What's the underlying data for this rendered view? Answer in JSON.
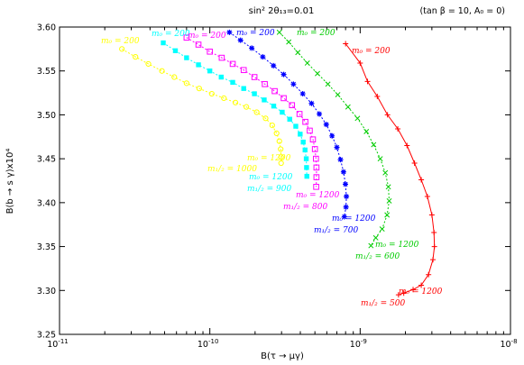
{
  "chart_data": {
    "type": "scatter",
    "title": "sin² 2θ₁₃=0.01",
    "annotation": "(tan β = 10,  A₀ = 0)",
    "xlabel": "B(τ → μγ)",
    "ylabel": "B(b → s γ)x10⁴",
    "xscale": "log",
    "xlim": [
      1e-11,
      1e-08
    ],
    "ylim": [
      3.25,
      3.6
    ],
    "x_ticks": [
      {
        "v": 1e-11,
        "base": "10",
        "exp": "-11"
      },
      {
        "v": 1e-10,
        "base": "10",
        "exp": "-10"
      },
      {
        "v": 1e-09,
        "base": "10",
        "exp": "-9"
      },
      {
        "v": 1e-08,
        "base": "10",
        "exp": "-8"
      }
    ],
    "y_ticks": [
      "3.25",
      "3.30",
      "3.35",
      "3.40",
      "3.45",
      "3.50",
      "3.55",
      "3.60"
    ],
    "grid": false,
    "legend": "none",
    "series": [
      {
        "name": "m1/2 = 1000",
        "color": "#ffff00",
        "marker": "circle",
        "labels": {
          "start": "m₀ = 200",
          "end_m0": "m₀ = 1200",
          "end_m12": "m₁/₂ = 1000"
        },
        "points": [
          [
            2.6e-11,
            3.575
          ],
          [
            3.2e-11,
            3.566
          ],
          [
            3.9e-11,
            3.558
          ],
          [
            4.8e-11,
            3.55
          ],
          [
            5.8e-11,
            3.543
          ],
          [
            7e-11,
            3.536
          ],
          [
            8.5e-11,
            3.53
          ],
          [
            1.03e-10,
            3.524
          ],
          [
            1.24e-10,
            3.519
          ],
          [
            1.48e-10,
            3.514
          ],
          [
            1.75e-10,
            3.509
          ],
          [
            2.05e-10,
            3.503
          ],
          [
            2.35e-10,
            3.496
          ],
          [
            2.6e-10,
            3.488
          ],
          [
            2.78e-10,
            3.479
          ],
          [
            2.9e-10,
            3.47
          ],
          [
            2.96e-10,
            3.461
          ],
          [
            2.98e-10,
            3.452
          ],
          [
            2.98e-10,
            3.445
          ]
        ]
      },
      {
        "name": "m1/2 = 900",
        "color": "#00ffff",
        "marker": "filled-square",
        "labels": {
          "start": "m₀ = 200",
          "end_m0": "m₀ = 1200",
          "end_m12": "m₁/₂ = 900"
        },
        "points": [
          [
            4.9e-11,
            3.582
          ],
          [
            5.9e-11,
            3.573
          ],
          [
            7e-11,
            3.565
          ],
          [
            8.4e-11,
            3.557
          ],
          [
            1e-10,
            3.55
          ],
          [
            1.19e-10,
            3.543
          ],
          [
            1.42e-10,
            3.537
          ],
          [
            1.68e-10,
            3.53
          ],
          [
            1.98e-10,
            3.524
          ],
          [
            2.3e-10,
            3.517
          ],
          [
            2.66e-10,
            3.51
          ],
          [
            3.03e-10,
            3.503
          ],
          [
            3.4e-10,
            3.495
          ],
          [
            3.73e-10,
            3.487
          ],
          [
            3.99e-10,
            3.478
          ],
          [
            4.18e-10,
            3.469
          ],
          [
            4.3e-10,
            3.46
          ],
          [
            4.38e-10,
            3.45
          ],
          [
            4.4e-10,
            3.44
          ],
          [
            4.42e-10,
            3.43
          ]
        ]
      },
      {
        "name": "m1/2 = 800",
        "color": "#ff00ff",
        "marker": "open-square",
        "labels": {
          "start": "m₀ = 200",
          "end_m0": "m₀ = 1200",
          "end_m12": "m₁/₂ = 800"
        },
        "points": [
          [
            7e-11,
            3.588
          ],
          [
            8.4e-11,
            3.58
          ],
          [
            1e-10,
            3.572
          ],
          [
            1.2e-10,
            3.565
          ],
          [
            1.42e-10,
            3.558
          ],
          [
            1.68e-10,
            3.551
          ],
          [
            1.98e-10,
            3.543
          ],
          [
            2.32e-10,
            3.535
          ],
          [
            2.7e-10,
            3.527
          ],
          [
            3.1e-10,
            3.519
          ],
          [
            3.52e-10,
            3.511
          ],
          [
            3.95e-10,
            3.501
          ],
          [
            4.32e-10,
            3.492
          ],
          [
            4.62e-10,
            3.482
          ],
          [
            4.85e-10,
            3.472
          ],
          [
            5e-10,
            3.461
          ],
          [
            5.08e-10,
            3.45
          ],
          [
            5.12e-10,
            3.44
          ],
          [
            5.12e-10,
            3.429
          ],
          [
            5.1e-10,
            3.418
          ]
        ]
      },
      {
        "name": "m1/2 = 700",
        "color": "#0000ff",
        "marker": "star",
        "labels": {
          "start": "m₀ = 200",
          "end_m0": "m₀ = 1200",
          "end_m12": "m₁/₂ = 700"
        },
        "points": [
          [
            1.35e-10,
            3.594
          ],
          [
            1.6e-10,
            3.585
          ],
          [
            1.9e-10,
            3.576
          ],
          [
            2.25e-10,
            3.566
          ],
          [
            2.65e-10,
            3.556
          ],
          [
            3.1e-10,
            3.546
          ],
          [
            3.6e-10,
            3.535
          ],
          [
            4.15e-10,
            3.524
          ],
          [
            4.75e-10,
            3.513
          ],
          [
            5.35e-10,
            3.501
          ],
          [
            5.95e-10,
            3.489
          ],
          [
            6.5e-10,
            3.476
          ],
          [
            7e-10,
            3.463
          ],
          [
            7.4e-10,
            3.449
          ],
          [
            7.75e-10,
            3.435
          ],
          [
            7.98e-10,
            3.421
          ],
          [
            8.1e-10,
            3.407
          ],
          [
            8.05e-10,
            3.395
          ],
          [
            7.85e-10,
            3.384
          ]
        ]
      },
      {
        "name": "m1/2 = 600",
        "color": "#00cc00",
        "marker": "x",
        "labels": {
          "start": "m₀ = 200",
          "end_m0": "m₀ = 1200",
          "end_m12": "m₁/₂ = 600"
        },
        "points": [
          [
            2.9e-10,
            3.594
          ],
          [
            3.35e-10,
            3.583
          ],
          [
            3.85e-10,
            3.571
          ],
          [
            4.45e-10,
            3.559
          ],
          [
            5.2e-10,
            3.547
          ],
          [
            6.1e-10,
            3.535
          ],
          [
            7.1e-10,
            3.523
          ],
          [
            8.3e-10,
            3.509
          ],
          [
            9.6e-10,
            3.496
          ],
          [
            1.1e-09,
            3.481
          ],
          [
            1.23e-09,
            3.466
          ],
          [
            1.36e-09,
            3.45
          ],
          [
            1.47e-09,
            3.434
          ],
          [
            1.54e-09,
            3.418
          ],
          [
            1.56e-09,
            3.402
          ],
          [
            1.51e-09,
            3.386
          ],
          [
            1.4e-09,
            3.37
          ],
          [
            1.27e-09,
            3.36
          ],
          [
            1.18e-09,
            3.351
          ]
        ]
      },
      {
        "name": "m1/2 = 500",
        "color": "#ff0000",
        "marker": "plus",
        "labels": {
          "start": "m₀ = 200",
          "end_m0": "m₀ = 1200",
          "end_m12": "m₁/₂ = 500"
        },
        "points": [
          [
            8e-10,
            3.581
          ],
          [
            1e-09,
            3.559
          ],
          [
            1.12e-09,
            3.538
          ],
          [
            1.3e-09,
            3.521
          ],
          [
            1.52e-09,
            3.5
          ],
          [
            1.78e-09,
            3.484
          ],
          [
            2.05e-09,
            3.465
          ],
          [
            2.3e-09,
            3.445
          ],
          [
            2.55e-09,
            3.426
          ],
          [
            2.8e-09,
            3.407
          ],
          [
            3e-09,
            3.386
          ],
          [
            3.1e-09,
            3.366
          ],
          [
            3.12e-09,
            3.35
          ],
          [
            3.05e-09,
            3.335
          ],
          [
            2.85e-09,
            3.318
          ],
          [
            2.55e-09,
            3.306
          ],
          [
            2.25e-09,
            3.301
          ],
          [
            1.95e-09,
            3.297
          ],
          [
            1.8e-09,
            3.295
          ]
        ]
      }
    ]
  }
}
